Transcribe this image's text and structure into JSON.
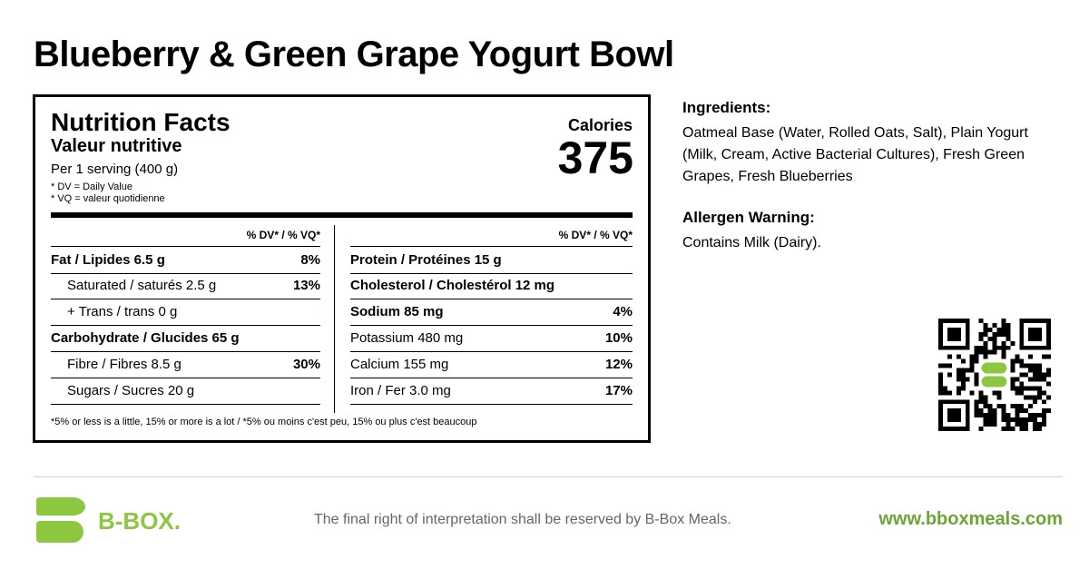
{
  "title": "Blueberry & Green Grape Yogurt Bowl",
  "nutrition": {
    "heading": "Nutrition Facts",
    "heading_fr": "Valeur nutritive",
    "serving": "Per 1 serving (400 g)",
    "notes": [
      "* DV = Daily Value",
      "* VQ = valeur quotidienne"
    ],
    "calories_label": "Calories",
    "calories": 375,
    "left": {
      "dv_header": "% DV* / % VQ*",
      "rows": [
        {
          "label": "Fat / Lipides 6.5 g",
          "dv": "8%"
        },
        {
          "label": "Saturated / saturés 2.5 g",
          "dv": "13%"
        },
        {
          "label": "+ Trans / trans 0 g"
        },
        {
          "label": "Carbohydrate / Glucides 65 g"
        },
        {
          "label": "Fibre / Fibres 8.5 g",
          "dv": "30%"
        },
        {
          "label": "Sugars / Sucres 20 g"
        }
      ]
    },
    "right": {
      "dv_header": "% DV* / % VQ*",
      "rows": [
        {
          "label": "Protein / Protéines 15 g"
        },
        {
          "label": "Cholesterol / Cholestérol 12 mg"
        },
        {
          "label": "Sodium 85 mg",
          "dv": "4%"
        },
        {
          "label": "Potassium 480 mg",
          "dv": "10%"
        },
        {
          "label": "Calcium 155 mg",
          "dv": "12%"
        },
        {
          "label": "Iron / Fer 3.0 mg",
          "dv": "17%"
        }
      ]
    },
    "footnote": "*5% or less is a little, 15% or more is a lot / *5% ou moins c'est peu, 15% ou plus c'est beaucoup"
  },
  "ingredients": {
    "heading": "Ingredients:",
    "text": "Oatmeal Base (Water, Rolled Oats, Salt), Plain Yogurt (Milk, Cream, Active Bacterial Cultures), Fresh Green Grapes, Fresh Blueberries"
  },
  "allergen": {
    "heading": "Allergen Warning:",
    "text": "Contains Milk (Dairy)."
  },
  "footer": {
    "brand": "B-BOX.",
    "disclaimer": "The final right of interpretation shall be reserved by B-Box Meals.",
    "url": "www.bboxmeals.com"
  }
}
